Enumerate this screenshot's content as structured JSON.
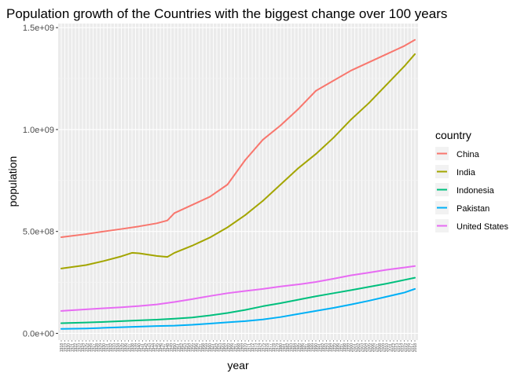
{
  "chart_data": {
    "type": "line",
    "title": "Population growth of the Countries with the biggest change over 100 years",
    "xlabel": "year",
    "ylabel": "population",
    "xlim": [
      1918,
      2018
    ],
    "ylim": [
      0,
      1500000000
    ],
    "yticks": [
      0,
      500000000,
      1000000000,
      1500000000
    ],
    "ytick_labels": [
      "0.0e+00",
      "5.0e+08",
      "1.0e+09",
      "1.5e+09"
    ],
    "grid": true,
    "legend": {
      "title": "country",
      "position": "right"
    },
    "series": [
      {
        "name": "China",
        "color": "#F8766D",
        "x": [
          1918,
          1925,
          1930,
          1935,
          1940,
          1945,
          1948,
          1950,
          1955,
          1960,
          1965,
          1970,
          1975,
          1980,
          1985,
          1990,
          1995,
          2000,
          2005,
          2010,
          2015,
          2018
        ],
        "y": [
          472000000,
          487000000,
          500000000,
          512000000,
          525000000,
          540000000,
          554000000,
          590000000,
          630000000,
          670000000,
          730000000,
          850000000,
          950000000,
          1020000000,
          1100000000,
          1190000000,
          1240000000,
          1290000000,
          1330000000,
          1370000000,
          1410000000,
          1440000000
        ]
      },
      {
        "name": "India",
        "color": "#A3A500",
        "x": [
          1918,
          1925,
          1930,
          1935,
          1938,
          1940,
          1945,
          1948,
          1950,
          1955,
          1960,
          1965,
          1970,
          1975,
          1980,
          1985,
          1990,
          1995,
          2000,
          2005,
          2010,
          2015,
          2018
        ],
        "y": [
          318000000,
          335000000,
          355000000,
          378000000,
          395000000,
          393000000,
          380000000,
          375000000,
          395000000,
          430000000,
          470000000,
          520000000,
          580000000,
          650000000,
          730000000,
          810000000,
          880000000,
          960000000,
          1050000000,
          1130000000,
          1220000000,
          1310000000,
          1370000000
        ]
      },
      {
        "name": "Indonesia",
        "color": "#00BF7D",
        "x": [
          1918,
          1925,
          1930,
          1935,
          1940,
          1945,
          1950,
          1955,
          1960,
          1965,
          1970,
          1975,
          1980,
          1985,
          1990,
          1995,
          2000,
          2005,
          2010,
          2015,
          2018
        ],
        "y": [
          50000000,
          53000000,
          56000000,
          60000000,
          64000000,
          67000000,
          72000000,
          78000000,
          88000000,
          100000000,
          115000000,
          133000000,
          148000000,
          165000000,
          182000000,
          197000000,
          212000000,
          228000000,
          244000000,
          262000000,
          273000000
        ]
      },
      {
        "name": "Pakistan",
        "color": "#00B0F6",
        "x": [
          1918,
          1925,
          1930,
          1935,
          1940,
          1945,
          1950,
          1955,
          1960,
          1965,
          1970,
          1975,
          1980,
          1985,
          1990,
          1995,
          2000,
          2005,
          2010,
          2015,
          2018
        ],
        "y": [
          22000000,
          24000000,
          27000000,
          30000000,
          33000000,
          36000000,
          38000000,
          42000000,
          48000000,
          54000000,
          60000000,
          68000000,
          80000000,
          95000000,
          110000000,
          125000000,
          142000000,
          160000000,
          180000000,
          200000000,
          218000000
        ]
      },
      {
        "name": "United States",
        "color": "#E76BF3",
        "x": [
          1918,
          1925,
          1930,
          1935,
          1940,
          1945,
          1950,
          1955,
          1960,
          1965,
          1970,
          1975,
          1980,
          1985,
          1990,
          1995,
          2000,
          2005,
          2010,
          2015,
          2018
        ],
        "y": [
          110000000,
          118000000,
          123000000,
          128000000,
          134000000,
          142000000,
          154000000,
          168000000,
          183000000,
          197000000,
          208000000,
          218000000,
          230000000,
          240000000,
          252000000,
          268000000,
          285000000,
          298000000,
          312000000,
          323000000,
          330000000
        ]
      }
    ]
  }
}
